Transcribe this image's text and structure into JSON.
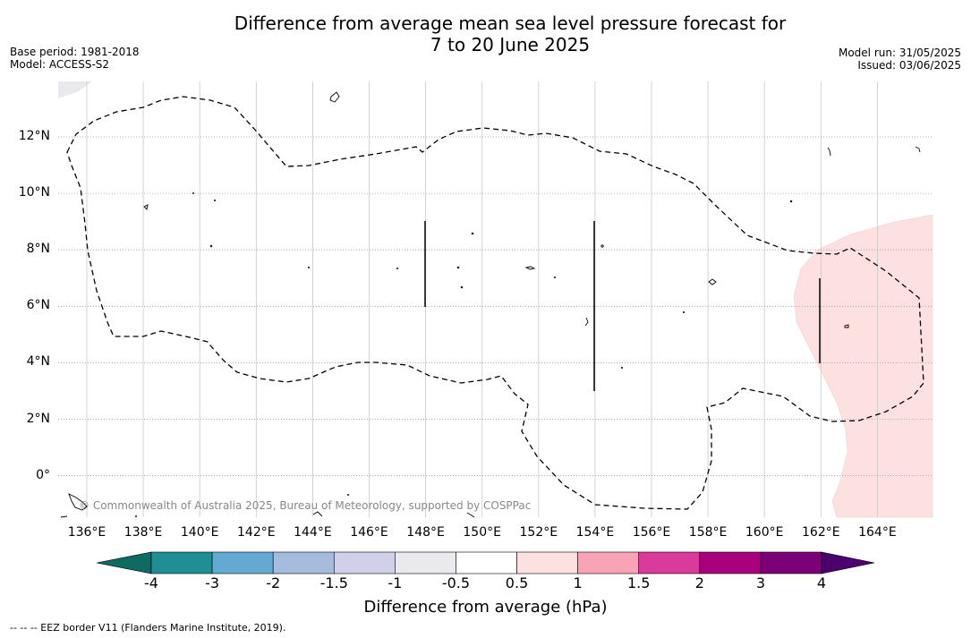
{
  "title_line1": "Difference from average mean sea level pressure forecast for",
  "title_line2": "7 to 20 June 2025",
  "base_period": "Base period: 1981-2018",
  "model": "Model: ACCESS-S2",
  "model_run": "Model run: 31/05/2025",
  "issued": "Issued: 03/06/2025",
  "copyright": "© Commonwealth of Australia 2025, Bureau of Meteorology, supported by COSPPac",
  "x_ticks": [
    "136°E",
    "138°E",
    "140°E",
    "142°E",
    "144°E",
    "146°E",
    "148°E",
    "150°E",
    "152°E",
    "154°E",
    "156°E",
    "158°E",
    "160°E",
    "162°E",
    "164°E"
  ],
  "y_ticks": [
    "12°N",
    "10°N",
    "8°N",
    "6°N",
    "4°N",
    "2°N",
    "0°"
  ],
  "colorbar": {
    "labels": [
      "-4",
      "-3",
      "-2",
      "-1.5",
      "-1",
      "-0.5",
      "0.5",
      "1",
      "1.5",
      "2",
      "3",
      "4"
    ],
    "colors": [
      "#1f8f94",
      "#64a9d3",
      "#a5bcdc",
      "#d0d1e8",
      "#e9e9ee",
      "#ffffff",
      "#fde0e0",
      "#f8a4b6",
      "#da3a9a",
      "#a9007d",
      "#7a0177"
    ],
    "under_color": "#0d6b63",
    "over_color": "#4b006e",
    "title": "Difference from average (hPa)"
  },
  "legend_note": "--  --  -- EEZ border V11 (Flanders Marine Institute, 2019).",
  "shading": [
    {
      "name": "positive-anomaly-0.5-1",
      "color": "#fde0e0",
      "range": "0.5 to 1 hPa"
    }
  ]
}
